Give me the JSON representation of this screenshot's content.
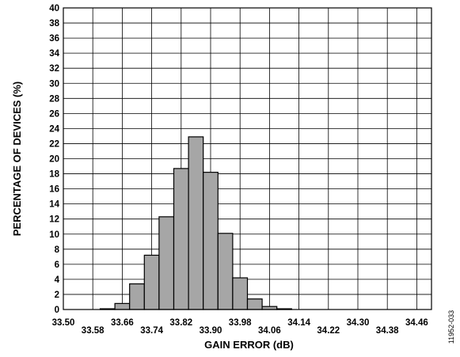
{
  "chart_data": {
    "type": "bar",
    "title": "",
    "xlabel": "GAIN ERROR (dB)",
    "ylabel": "PERCENTAGE OF DEVICES (%)",
    "ylim": [
      0,
      40
    ],
    "y_ticks": [
      "0",
      "2",
      "4",
      "6",
      "8",
      "10",
      "12",
      "14",
      "16",
      "18",
      "20",
      "22",
      "24",
      "26",
      "28",
      "30",
      "32",
      "34",
      "36",
      "38",
      "40"
    ],
    "xlim": [
      33.5,
      34.5
    ],
    "x_ticks": [
      "33.50",
      "33.58",
      "33.66",
      "33.74",
      "33.82",
      "33.90",
      "33.98",
      "34.06",
      "34.14",
      "34.22",
      "34.30",
      "34.38",
      "34.46"
    ],
    "grid": true,
    "bins": [
      {
        "x": 33.62,
        "value": 0.1
      },
      {
        "x": 33.66,
        "value": 0.8
      },
      {
        "x": 33.7,
        "value": 3.4
      },
      {
        "x": 33.74,
        "value": 7.2
      },
      {
        "x": 33.78,
        "value": 12.3
      },
      {
        "x": 33.82,
        "value": 18.7
      },
      {
        "x": 33.86,
        "value": 22.9
      },
      {
        "x": 33.9,
        "value": 18.2
      },
      {
        "x": 33.94,
        "value": 10.1
      },
      {
        "x": 33.98,
        "value": 4.2
      },
      {
        "x": 34.02,
        "value": 1.4
      },
      {
        "x": 34.06,
        "value": 0.4
      },
      {
        "x": 34.1,
        "value": 0.1
      }
    ],
    "bin_width": 0.04,
    "bar_color": "#a6a6a6"
  },
  "figure_id": "11952-033"
}
